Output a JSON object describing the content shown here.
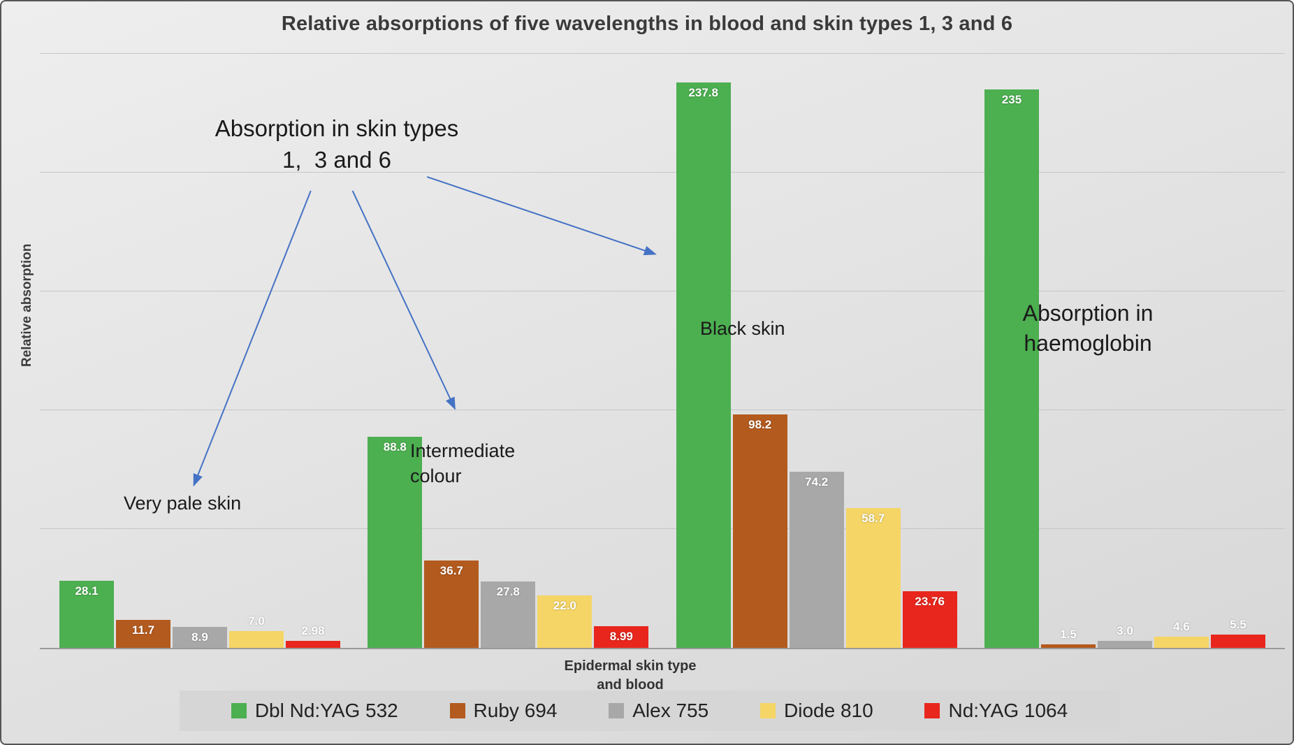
{
  "chart_data": {
    "type": "bar",
    "title": "Relative absorptions of five wavelengths in blood and skin types 1, 3 and 6",
    "xlabel": "Epidermal skin type\nand blood",
    "ylabel": "Relative absorption",
    "ylim": [
      0,
      250
    ],
    "gridlines": [
      50,
      100,
      150,
      200,
      250
    ],
    "grid": true,
    "legend_position": "bottom",
    "categories": [
      "Very pale skin",
      "Intermediate colour",
      "Black skin",
      "Absorption in haemoglobin"
    ],
    "series": [
      {
        "name": "Dbl Nd:YAG 532",
        "color": "#4caf50",
        "values": [
          28.1,
          88.8,
          237.8,
          235
        ],
        "value_labels": [
          "28.1",
          "88.8",
          "237.8",
          "235"
        ]
      },
      {
        "name": "Ruby 694",
        "color": "#b35a1e",
        "values": [
          11.7,
          36.7,
          98.2,
          1.5
        ],
        "value_labels": [
          "11.7",
          "36.7",
          "98.2",
          "1.5"
        ]
      },
      {
        "name": "Alex 755",
        "color": "#a8a8a8",
        "values": [
          8.9,
          27.8,
          74.2,
          3.0
        ],
        "value_labels": [
          "8.9",
          "27.8",
          "74.2",
          "3.0"
        ]
      },
      {
        "name": "Diode 810",
        "color": "#f5d565",
        "values": [
          7.0,
          22.0,
          58.7,
          4.6
        ],
        "value_labels": [
          "7.0",
          "22.0",
          "58.7",
          "4.6"
        ]
      },
      {
        "name": "Nd:YAG 1064",
        "color": "#e8261d",
        "values": [
          2.98,
          8.99,
          23.76,
          5.5
        ],
        "value_labels": [
          "2.98",
          "8.99",
          "23.76",
          "5.5"
        ]
      }
    ],
    "annotations": {
      "skin_types": "Absorption in skin types\n1,  3 and 6",
      "very_pale": "Very pale skin",
      "intermediate": "Intermediate\ncolour",
      "black_skin": "Black skin",
      "haemoglobin": "Absorption in\nhaemoglobin"
    },
    "arrow_color": "#4472c4"
  }
}
